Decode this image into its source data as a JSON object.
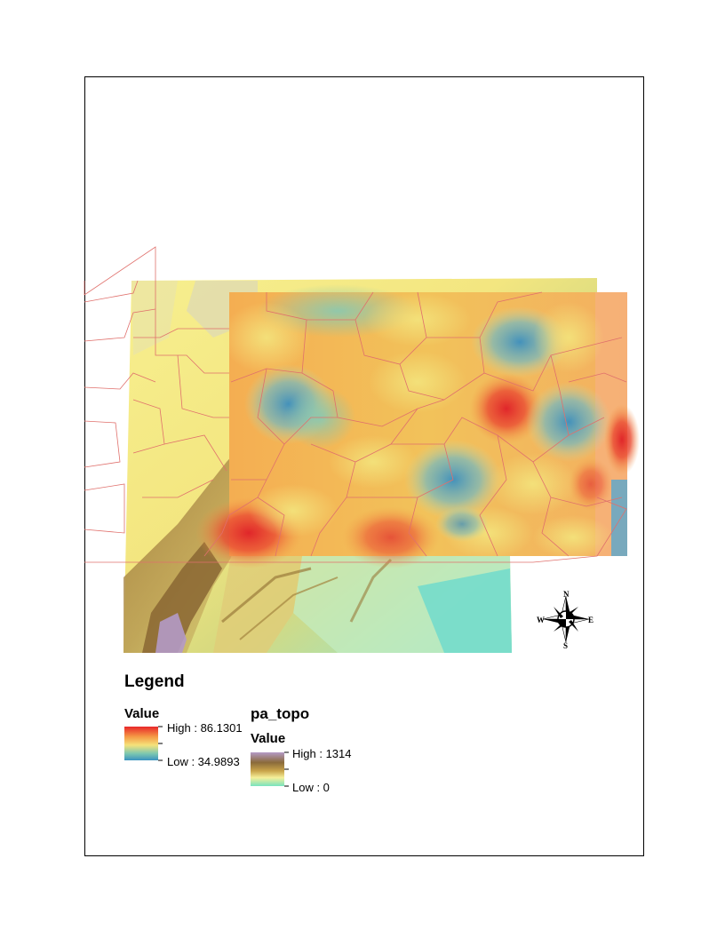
{
  "legend": {
    "title": "Legend",
    "layer1": {
      "field": "Value",
      "high_label": "High : 86.1301",
      "low_label": "Low : 34.9893",
      "ramp_colors": [
        "#e8272a",
        "#f59a45",
        "#f5e27a",
        "#7cc7b0",
        "#3a92c0"
      ]
    },
    "layer2": {
      "name": "pa_topo",
      "field": "Value",
      "high_label": "High : 1314",
      "low_label": "Low : 0",
      "ramp_colors": [
        "#b49ac6",
        "#8a6a3a",
        "#c9a44a",
        "#f6f09a",
        "#78e3bf"
      ]
    }
  },
  "compass": {
    "north": "N",
    "south": "S",
    "east": "E",
    "west": "W"
  }
}
